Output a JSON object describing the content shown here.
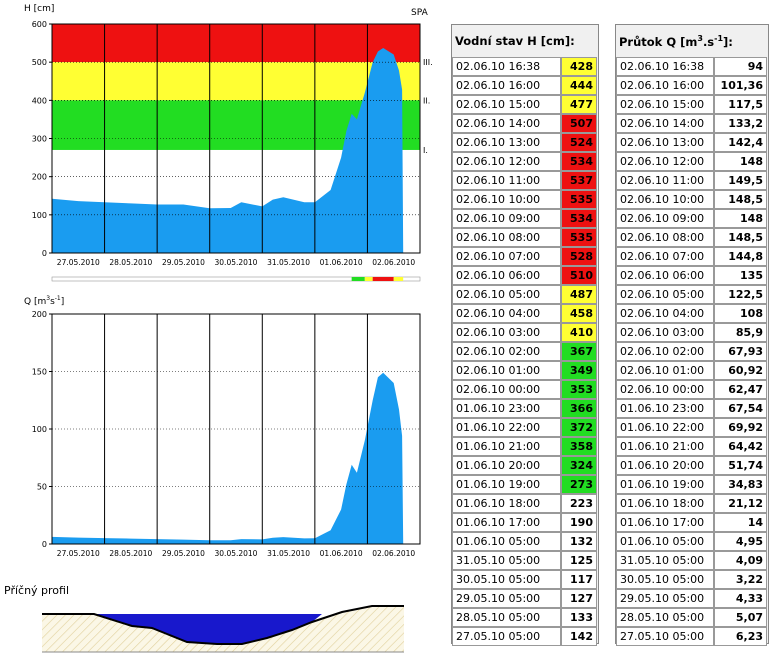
{
  "colors": {
    "flow": "#1a9cf0",
    "red": "#ee1111",
    "yellow": "#ffff33",
    "green": "#22dd22"
  },
  "chart_data": [
    {
      "type": "area",
      "ylabel": "H [cm]",
      "corner_label": "SPA",
      "ylim": [
        0,
        600
      ],
      "yticks": [
        0,
        100,
        200,
        300,
        400,
        500,
        600
      ],
      "x_labels": [
        "27.05.2010",
        "28.05.2010",
        "29.05.2010",
        "30.05.2010",
        "31.05.2010",
        "01.06.2010",
        "02.06.2010"
      ],
      "bands": [
        {
          "from": 500,
          "to": 600,
          "color": "#ee1111",
          "label": "III."
        },
        {
          "from": 400,
          "to": 500,
          "color": "#ffff33",
          "label": "II."
        },
        {
          "from": 270,
          "to": 400,
          "color": "#22dd22",
          "label": "I."
        }
      ],
      "series": [
        {
          "x": [
            0,
            0.5,
            1,
            1.5,
            2,
            2.5,
            3,
            3.4,
            3.6,
            4,
            4.2,
            4.4,
            4.8,
            5,
            5.3,
            5.5,
            5.6,
            5.7,
            5.8,
            5.95,
            6.1,
            6.2,
            6.3,
            6.5,
            6.6,
            6.66,
            6.68
          ],
          "y": [
            142,
            136,
            133,
            130,
            127,
            127,
            117,
            118,
            133,
            122,
            140,
            146,
            133,
            133,
            165,
            250,
            320,
            365,
            350,
            420,
            500,
            528,
            537,
            520,
            478,
            428,
            0
          ]
        }
      ]
    },
    {
      "type": "area",
      "ylabel": "Q [m3s-1]",
      "ylim": [
        0,
        200
      ],
      "yticks": [
        0,
        50,
        100,
        150,
        200
      ],
      "x_labels": [
        "27.05.2010",
        "28.05.2010",
        "29.05.2010",
        "30.05.2010",
        "31.05.2010",
        "01.06.2010",
        "02.06.2010"
      ],
      "series": [
        {
          "x": [
            0,
            0.5,
            1,
            1.5,
            2,
            2.5,
            3,
            3.4,
            3.6,
            4,
            4.2,
            4.4,
            4.8,
            5,
            5.3,
            5.5,
            5.6,
            5.7,
            5.8,
            5.95,
            6.1,
            6.2,
            6.3,
            6.5,
            6.6,
            6.66,
            6.68
          ],
          "y": [
            6.2,
            5.6,
            5.1,
            4.7,
            4.3,
            3.8,
            3.2,
            3.3,
            4.3,
            4.0,
            5.5,
            6.0,
            4.9,
            5.0,
            12,
            30,
            52,
            69,
            62,
            90,
            125,
            145,
            149,
            140,
            117,
            94,
            0
          ]
        }
      ]
    },
    {
      "type": "table",
      "title": "Vodní stav H [cm]:",
      "rows": [
        {
          "t": "02.06.10 16:38",
          "v": "428",
          "c": "#ffff33"
        },
        {
          "t": "02.06.10 16:00",
          "v": "444",
          "c": "#ffff33"
        },
        {
          "t": "02.06.10 15:00",
          "v": "477",
          "c": "#ffff33"
        },
        {
          "t": "02.06.10 14:00",
          "v": "507",
          "c": "#ee1111"
        },
        {
          "t": "02.06.10 13:00",
          "v": "524",
          "c": "#ee1111"
        },
        {
          "t": "02.06.10 12:00",
          "v": "534",
          "c": "#ee1111"
        },
        {
          "t": "02.06.10 11:00",
          "v": "537",
          "c": "#ee1111"
        },
        {
          "t": "02.06.10 10:00",
          "v": "535",
          "c": "#ee1111"
        },
        {
          "t": "02.06.10 09:00",
          "v": "534",
          "c": "#ee1111"
        },
        {
          "t": "02.06.10 08:00",
          "v": "535",
          "c": "#ee1111"
        },
        {
          "t": "02.06.10 07:00",
          "v": "528",
          "c": "#ee1111"
        },
        {
          "t": "02.06.10 06:00",
          "v": "510",
          "c": "#ee1111"
        },
        {
          "t": "02.06.10 05:00",
          "v": "487",
          "c": "#ffff33"
        },
        {
          "t": "02.06.10 04:00",
          "v": "458",
          "c": "#ffff33"
        },
        {
          "t": "02.06.10 03:00",
          "v": "410",
          "c": "#ffff33"
        },
        {
          "t": "02.06.10 02:00",
          "v": "367",
          "c": "#22dd22"
        },
        {
          "t": "02.06.10 01:00",
          "v": "349",
          "c": "#22dd22"
        },
        {
          "t": "02.06.10 00:00",
          "v": "353",
          "c": "#22dd22"
        },
        {
          "t": "01.06.10 23:00",
          "v": "366",
          "c": "#22dd22"
        },
        {
          "t": "01.06.10 22:00",
          "v": "372",
          "c": "#22dd22"
        },
        {
          "t": "01.06.10 21:00",
          "v": "358",
          "c": "#22dd22"
        },
        {
          "t": "01.06.10 20:00",
          "v": "324",
          "c": "#22dd22"
        },
        {
          "t": "01.06.10 19:00",
          "v": "273",
          "c": "#22dd22"
        },
        {
          "t": "01.06.10 18:00",
          "v": "223",
          "c": "#ffffff"
        },
        {
          "t": "01.06.10 17:00",
          "v": "190",
          "c": "#ffffff"
        },
        {
          "t": "01.06.10 05:00",
          "v": "132",
          "c": "#ffffff"
        },
        {
          "t": "31.05.10 05:00",
          "v": "125",
          "c": "#ffffff"
        },
        {
          "t": "30.05.10 05:00",
          "v": "117",
          "c": "#ffffff"
        },
        {
          "t": "29.05.10 05:00",
          "v": "127",
          "c": "#ffffff"
        },
        {
          "t": "28.05.10 05:00",
          "v": "133",
          "c": "#ffffff"
        },
        {
          "t": "27.05.10 05:00",
          "v": "142",
          "c": "#ffffff"
        }
      ]
    },
    {
      "type": "table",
      "title": "Průtok Q [m3.s-1]:",
      "rows": [
        {
          "t": "02.06.10 16:38",
          "v": "94"
        },
        {
          "t": "02.06.10 16:00",
          "v": "101,36"
        },
        {
          "t": "02.06.10 15:00",
          "v": "117,5"
        },
        {
          "t": "02.06.10 14:00",
          "v": "133,2"
        },
        {
          "t": "02.06.10 13:00",
          "v": "142,4"
        },
        {
          "t": "02.06.10 12:00",
          "v": "148"
        },
        {
          "t": "02.06.10 11:00",
          "v": "149,5"
        },
        {
          "t": "02.06.10 10:00",
          "v": "148,5"
        },
        {
          "t": "02.06.10 09:00",
          "v": "148"
        },
        {
          "t": "02.06.10 08:00",
          "v": "148,5"
        },
        {
          "t": "02.06.10 07:00",
          "v": "144,8"
        },
        {
          "t": "02.06.10 06:00",
          "v": "135"
        },
        {
          "t": "02.06.10 05:00",
          "v": "122,5"
        },
        {
          "t": "02.06.10 04:00",
          "v": "108"
        },
        {
          "t": "02.06.10 03:00",
          "v": "85,9"
        },
        {
          "t": "02.06.10 02:00",
          "v": "67,93"
        },
        {
          "t": "02.06.10 01:00",
          "v": "60,92"
        },
        {
          "t": "02.06.10 00:00",
          "v": "62,47"
        },
        {
          "t": "01.06.10 23:00",
          "v": "67,54"
        },
        {
          "t": "01.06.10 22:00",
          "v": "69,92"
        },
        {
          "t": "01.06.10 21:00",
          "v": "64,42"
        },
        {
          "t": "01.06.10 20:00",
          "v": "51,74"
        },
        {
          "t": "01.06.10 19:00",
          "v": "34,83"
        },
        {
          "t": "01.06.10 18:00",
          "v": "21,12"
        },
        {
          "t": "01.06.10 17:00",
          "v": "14"
        },
        {
          "t": "01.06.10 05:00",
          "v": "4,95"
        },
        {
          "t": "31.05.10 05:00",
          "v": "4,09"
        },
        {
          "t": "30.05.10 05:00",
          "v": "3,22"
        },
        {
          "t": "29.05.10 05:00",
          "v": "4,33"
        },
        {
          "t": "28.05.10 05:00",
          "v": "5,07"
        },
        {
          "t": "27.05.10 05:00",
          "v": "6,23"
        }
      ]
    }
  ],
  "profile": {
    "title": "Příčný profil"
  }
}
